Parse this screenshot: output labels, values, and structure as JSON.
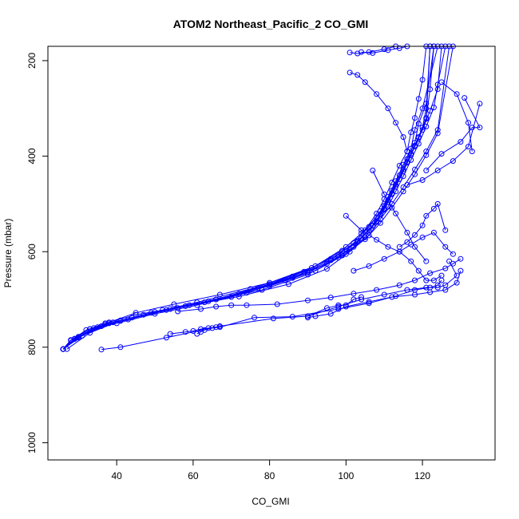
{
  "chart_data": {
    "type": "line",
    "title": "ATOM2 Northeast_Pacific_2 CO_GMI",
    "xlabel": "CO_GMI",
    "ylabel": "Pressure (mbar)",
    "xlim": [
      22,
      139
    ],
    "ylim": [
      1036,
      170
    ],
    "y_reversed": true,
    "x_ticks": [
      40,
      60,
      80,
      100,
      120
    ],
    "y_ticks": [
      200,
      400,
      600,
      800,
      1000
    ],
    "grid": false,
    "legend": "none",
    "colors": {
      "series": "#0000ff",
      "axes": "#000000"
    },
    "series": [
      {
        "x": [
          26,
          28,
          33,
          38,
          45,
          55,
          67,
          80,
          92,
          100,
          105,
          108,
          110,
          112,
          114,
          116,
          117,
          118,
          119,
          120,
          121
        ],
        "y": [
          804,
          785,
          762,
          748,
          728,
          710,
          690,
          665,
          630,
          590,
          555,
          520,
          490,
          455,
          420,
          390,
          350,
          320,
          280,
          240,
          170
        ]
      },
      {
        "x": [
          26,
          29,
          34,
          41,
          52,
          64,
          78,
          90,
          98,
          103,
          107,
          110,
          112,
          114,
          116,
          118,
          120,
          121,
          122
        ],
        "y": [
          804,
          783,
          760,
          745,
          722,
          704,
          680,
          648,
          612,
          578,
          545,
          510,
          478,
          448,
          412,
          378,
          340,
          300,
          170
        ]
      },
      {
        "x": [
          26,
          30,
          36,
          44,
          56,
          70,
          84,
          95,
          102,
          106,
          109,
          111,
          113,
          115,
          117,
          119,
          121,
          122,
          123
        ],
        "y": [
          804,
          780,
          756,
          738,
          718,
          695,
          660,
          625,
          590,
          555,
          522,
          492,
          460,
          428,
          395,
          360,
          320,
          260,
          170
        ]
      },
      {
        "x": [
          26,
          28,
          33,
          40,
          50,
          61,
          74,
          86,
          96,
          102,
          106,
          109,
          111,
          113,
          115,
          117,
          118,
          120,
          124
        ],
        "y": [
          804,
          785,
          762,
          750,
          730,
          712,
          686,
          655,
          618,
          582,
          548,
          515,
          485,
          452,
          418,
          384,
          345,
          300,
          170
        ]
      },
      {
        "x": [
          26,
          29,
          35,
          43,
          54,
          66,
          80,
          92,
          100,
          105,
          108,
          110,
          112,
          114,
          116,
          118,
          119,
          121,
          123
        ],
        "y": [
          804,
          782,
          758,
          742,
          720,
          700,
          672,
          640,
          605,
          570,
          536,
          504,
          472,
          440,
          406,
          372,
          332,
          290,
          170
        ]
      },
      {
        "x": [
          26,
          30,
          37,
          47,
          59,
          72,
          86,
          96,
          103,
          107,
          110,
          112,
          114,
          116,
          118,
          120,
          122,
          124,
          125
        ],
        "y": [
          804,
          778,
          752,
          732,
          712,
          688,
          652,
          615,
          580,
          546,
          512,
          480,
          448,
          414,
          380,
          345,
          305,
          260,
          170
        ]
      },
      {
        "x": [
          26,
          31,
          39,
          49,
          61,
          75,
          89,
          98,
          104,
          108,
          111,
          113,
          115,
          117,
          119,
          121,
          123,
          124,
          126
        ],
        "y": [
          804,
          776,
          748,
          728,
          706,
          678,
          642,
          606,
          572,
          538,
          506,
          474,
          442,
          408,
          374,
          338,
          298,
          250,
          170
        ]
      },
      {
        "x": [
          26,
          28,
          32,
          37,
          45,
          58,
          72,
          85,
          95,
          101,
          106,
          109,
          112,
          115,
          118,
          121,
          124,
          127
        ],
        "y": [
          804,
          786,
          764,
          750,
          732,
          714,
          694,
          668,
          636,
          600,
          566,
          532,
          500,
          465,
          428,
          390,
          345,
          170
        ]
      },
      {
        "x": [
          27,
          33,
          41,
          53,
          66,
          80,
          91,
          99,
          104,
          108,
          111,
          113,
          115,
          117,
          119,
          121,
          122
        ],
        "y": [
          804,
          770,
          744,
          722,
          700,
          668,
          634,
          598,
          562,
          528,
          496,
          464,
          432,
          398,
          362,
          322,
          170
        ]
      },
      {
        "x": [
          26,
          30,
          38,
          50,
          63,
          77,
          90,
          99,
          105,
          109,
          112,
          115,
          118,
          121,
          124,
          128
        ],
        "y": [
          804,
          779,
          750,
          726,
          706,
          676,
          644,
          608,
          574,
          540,
          508,
          474,
          438,
          398,
          352,
          170
        ]
      },
      {
        "x": [
          36,
          41,
          53,
          67,
          81,
          90,
          95,
          98,
          100,
          102,
          104
        ],
        "y": [
          805,
          800,
          780,
          756,
          740,
          735,
          718,
          712,
          712,
          700,
          695
        ]
      },
      {
        "x": [
          54,
          58,
          60,
          62,
          64,
          66
        ],
        "y": [
          772,
          768,
          766,
          762,
          760,
          758
        ]
      },
      {
        "x": [
          61,
          62,
          63,
          65,
          67,
          76,
          86,
          98,
          106,
          113,
          118,
          122,
          124,
          125
        ],
        "y": [
          772,
          768,
          764,
          760,
          758,
          738,
          736,
          720,
          708,
          693,
          680,
          675,
          670,
          660
        ]
      },
      {
        "x": [
          56,
          62,
          66,
          70,
          74,
          82,
          90,
          96,
          102,
          108,
          114,
          118,
          122,
          126,
          128,
          130
        ],
        "y": [
          725,
          720,
          715,
          712,
          712,
          710,
          702,
          696,
          688,
          680,
          670,
          660,
          645,
          635,
          625,
          615
        ]
      },
      {
        "x": [
          90,
          92,
          96,
          100,
          106,
          112,
          118,
          122,
          126,
          129,
          130
        ],
        "y": [
          738,
          735,
          730,
          715,
          705,
          695,
          690,
          685,
          680,
          665,
          640
        ]
      },
      {
        "x": [
          90,
          98,
          104,
          110,
          116,
          121,
          124,
          126,
          129,
          127
        ],
        "y": [
          735,
          715,
          700,
          690,
          680,
          675,
          675,
          670,
          650,
          620
        ]
      },
      {
        "x": [
          100,
          104,
          108,
          111,
          114,
          117,
          119,
          121,
          123,
          125
        ],
        "y": [
          525,
          555,
          575,
          590,
          600,
          620,
          640,
          660,
          660,
          650
        ]
      },
      {
        "x": [
          102,
          106,
          110,
          114,
          117,
          120,
          123,
          126,
          128
        ],
        "y": [
          640,
          630,
          615,
          600,
          585,
          570,
          560,
          590,
          605
        ]
      },
      {
        "x": [
          114,
          116,
          118,
          120,
          121,
          123,
          124,
          126
        ],
        "y": [
          590,
          580,
          565,
          545,
          525,
          510,
          500,
          555
        ]
      },
      {
        "x": [
          107,
          110,
          113,
          116,
          118,
          121
        ],
        "y": [
          430,
          480,
          520,
          560,
          590,
          620
        ]
      },
      {
        "x": [
          116,
          120,
          124,
          128,
          132,
          135
        ],
        "y": [
          460,
          450,
          430,
          410,
          380,
          290
        ]
      },
      {
        "x": [
          121,
          125,
          130,
          133,
          135,
          131
        ],
        "y": [
          430,
          395,
          370,
          340,
          340,
          278
        ]
      },
      {
        "x": [
          125,
          129,
          132,
          133
        ],
        "y": [
          245,
          270,
          330,
          390
        ]
      },
      {
        "x": [
          101,
          103,
          105,
          108,
          111,
          113,
          115,
          116
        ],
        "y": [
          225,
          230,
          245,
          270,
          300,
          330,
          360,
          390
        ]
      },
      {
        "x": [
          101,
          103,
          106,
          110,
          113
        ],
        "y": [
          183,
          185,
          182,
          176,
          170
        ]
      },
      {
        "x": [
          104,
          107,
          111,
          114,
          116
        ],
        "y": [
          182,
          184,
          178,
          174,
          170
        ]
      }
    ]
  }
}
